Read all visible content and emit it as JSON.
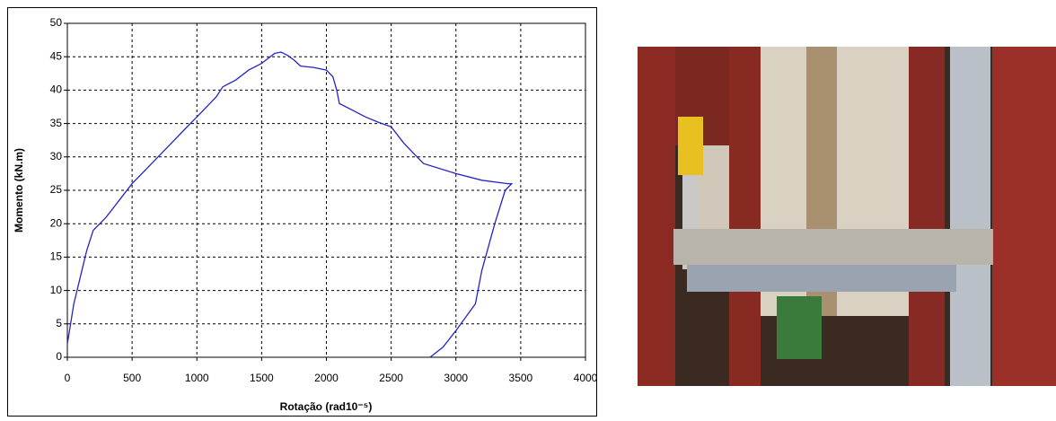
{
  "chart_data": {
    "type": "line",
    "xlabel": "Rotação (rad10⁻⁵)",
    "ylabel": "Momento (kN.m)",
    "x": [
      0,
      50,
      100,
      150,
      200,
      250,
      300,
      400,
      500,
      600,
      700,
      800,
      900,
      1000,
      1100,
      1150,
      1200,
      1300,
      1400,
      1500,
      1600,
      1650,
      1700,
      1750,
      1800,
      1900,
      2000,
      2050,
      2080,
      2100,
      2200,
      2300,
      2400,
      2500,
      2600,
      2700,
      2750,
      3000,
      3200,
      3400,
      3430,
      3380,
      3300,
      3200,
      3150,
      3000,
      2900,
      2800
    ],
    "series": [
      {
        "color": "#2424c8",
        "values": [
          2,
          8,
          12,
          16,
          19,
          20,
          21,
          23.5,
          26,
          28,
          30,
          32,
          34,
          36,
          38,
          39,
          40.5,
          41.5,
          43,
          44,
          45.5,
          45.7,
          45.2,
          44.5,
          43.6,
          43.4,
          43,
          42,
          40,
          38,
          37,
          36,
          35.2,
          34.5,
          32,
          30,
          29,
          27.5,
          26.5,
          26,
          26,
          25,
          20,
          13,
          8,
          4,
          1.5,
          0
        ]
      }
    ],
    "xlim": [
      0,
      4000
    ],
    "xticks": [
      0,
      500,
      1000,
      1500,
      2000,
      2500,
      3000,
      3500,
      4000
    ],
    "ylim": [
      0,
      50
    ],
    "yticks": [
      0,
      5,
      10,
      15,
      20,
      25,
      30,
      35,
      40,
      45,
      50
    ],
    "grid": true
  }
}
